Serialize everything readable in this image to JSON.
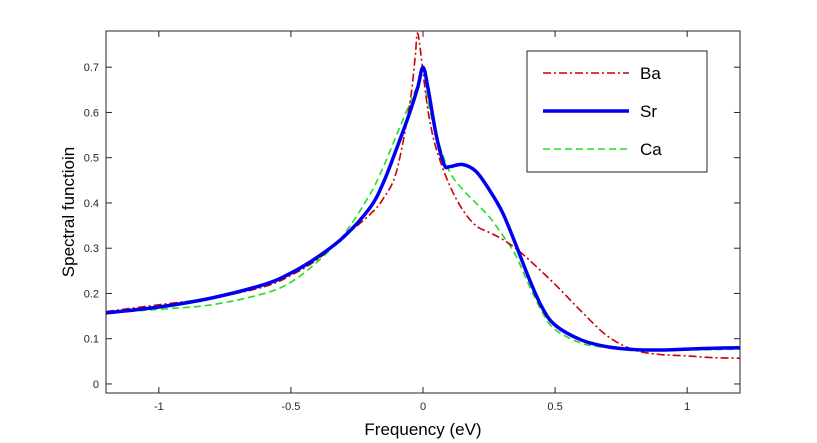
{
  "chart_data": {
    "type": "line",
    "title": "",
    "xlabel": "Frequency (eV)",
    "ylabel": "Spectral functioin",
    "xlim": [
      -1.2,
      1.2
    ],
    "ylim": [
      -0.02,
      0.78
    ],
    "xticks": [
      -1,
      -0.5,
      0,
      0.5,
      1
    ],
    "xtick_labels": [
      "-1",
      "-0.5",
      "0",
      "0.5",
      "1"
    ],
    "yticks": [
      0,
      0.1,
      0.2,
      0.3,
      0.4,
      0.5,
      0.6,
      0.7
    ],
    "ytick_labels": [
      "0",
      "0.1",
      "0.2",
      "0.3",
      "0.4",
      "0.5",
      "0.6",
      "0.7"
    ],
    "grid": false,
    "legend_position": "top-right",
    "series": [
      {
        "name": "Ba",
        "color": "#cc0000",
        "style": "dash-dot",
        "x": [
          -1.2,
          -1.0,
          -0.8,
          -0.6,
          -0.5,
          -0.4,
          -0.3,
          -0.2,
          -0.15,
          -0.1,
          -0.05,
          -0.03,
          -0.02,
          0.0,
          0.02,
          0.05,
          0.1,
          0.15,
          0.2,
          0.25,
          0.3,
          0.35,
          0.4,
          0.5,
          0.6,
          0.7,
          0.8,
          0.9,
          1.0,
          1.1,
          1.2
        ],
        "y": [
          0.16,
          0.175,
          0.19,
          0.215,
          0.24,
          0.275,
          0.325,
          0.375,
          0.41,
          0.47,
          0.62,
          0.72,
          0.775,
          0.69,
          0.6,
          0.52,
          0.44,
          0.385,
          0.35,
          0.335,
          0.32,
          0.3,
          0.275,
          0.22,
          0.16,
          0.105,
          0.075,
          0.065,
          0.062,
          0.058,
          0.057
        ]
      },
      {
        "name": "Sr",
        "color": "#0000ee",
        "style": "solid",
        "x": [
          -1.2,
          -1.0,
          -0.8,
          -0.6,
          -0.5,
          -0.4,
          -0.3,
          -0.2,
          -0.15,
          -0.1,
          -0.05,
          -0.02,
          0.0,
          0.02,
          0.05,
          0.08,
          0.1,
          0.15,
          0.2,
          0.25,
          0.3,
          0.35,
          0.4,
          0.45,
          0.5,
          0.6,
          0.7,
          0.8,
          0.9,
          1.0,
          1.1,
          1.2
        ],
        "y": [
          0.157,
          0.17,
          0.19,
          0.22,
          0.245,
          0.28,
          0.325,
          0.39,
          0.445,
          0.52,
          0.6,
          0.655,
          0.7,
          0.65,
          0.55,
          0.485,
          0.48,
          0.485,
          0.47,
          0.43,
          0.38,
          0.31,
          0.235,
          0.17,
          0.13,
          0.097,
          0.082,
          0.076,
          0.075,
          0.077,
          0.079,
          0.08
        ]
      },
      {
        "name": "Ca",
        "color": "#22dd22",
        "style": "dashed",
        "x": [
          -1.2,
          -1.0,
          -0.8,
          -0.6,
          -0.5,
          -0.4,
          -0.3,
          -0.2,
          -0.15,
          -0.1,
          -0.05,
          -0.02,
          0.0,
          0.02,
          0.05,
          0.1,
          0.15,
          0.2,
          0.25,
          0.3,
          0.35,
          0.4,
          0.45,
          0.5,
          0.6,
          0.7,
          0.8,
          0.9,
          1.0,
          1.1,
          1.2
        ],
        "y": [
          0.157,
          0.165,
          0.175,
          0.2,
          0.225,
          0.27,
          0.33,
          0.42,
          0.48,
          0.55,
          0.62,
          0.66,
          0.675,
          0.62,
          0.55,
          0.47,
          0.43,
          0.4,
          0.37,
          0.33,
          0.285,
          0.22,
          0.16,
          0.12,
          0.09,
          0.08,
          0.076,
          0.075,
          0.075,
          0.076,
          0.077
        ]
      }
    ]
  }
}
